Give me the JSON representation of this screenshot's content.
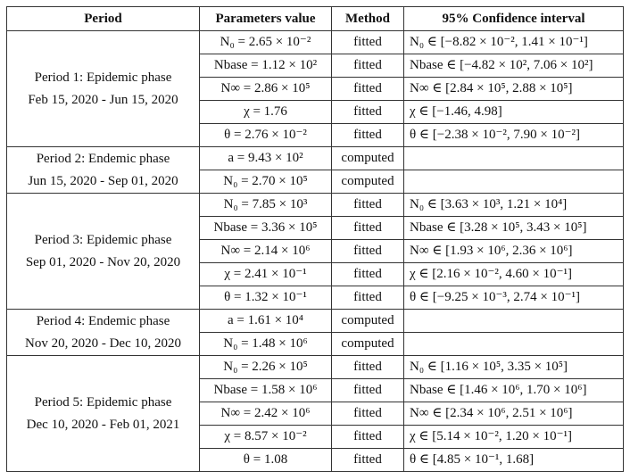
{
  "headers": [
    "Period",
    "Parameters value",
    "Method",
    "95% Confidence interval"
  ],
  "periods": [
    {
      "name": "Period 1: Epidemic phase",
      "dates": "Feb 15, 2020 - Jun 15, 2020",
      "rows": [
        {
          "param": "N₀ = 2.65 × 10⁻²",
          "method": "fitted",
          "ci": "N₀ ∈ [−8.82 × 10⁻², 1.41 × 10⁻¹]"
        },
        {
          "param": "Nbase = 1.12 × 10²",
          "method": "fitted",
          "ci": "Nbase ∈ [−4.82 × 10², 7.06 × 10²]"
        },
        {
          "param": "N∞ = 2.86 × 10⁵",
          "method": "fitted",
          "ci": "N∞ ∈ [2.84 × 10⁵, 2.88 × 10⁵]"
        },
        {
          "param": "χ = 1.76",
          "method": "fitted",
          "ci": "χ ∈ [−1.46, 4.98]"
        },
        {
          "param": "θ = 2.76 × 10⁻²",
          "method": "fitted",
          "ci": "θ ∈ [−2.38 × 10⁻², 7.90 × 10⁻²]"
        }
      ]
    },
    {
      "name": "Period 2: Endemic phase",
      "dates": "Jun 15, 2020 - Sep 01, 2020",
      "rows": [
        {
          "param": "a = 9.43 × 10²",
          "method": "computed",
          "ci": ""
        },
        {
          "param": "N₀ = 2.70 × 10⁵",
          "method": "computed",
          "ci": ""
        }
      ]
    },
    {
      "name": "Period 3: Epidemic phase",
      "dates": "Sep 01, 2020 - Nov 20, 2020",
      "rows": [
        {
          "param": "N₀ = 7.85 × 10³",
          "method": "fitted",
          "ci": "N₀ ∈ [3.63 × 10³, 1.21 × 10⁴]"
        },
        {
          "param": "Nbase = 3.36 × 10⁵",
          "method": "fitted",
          "ci": "Nbase ∈ [3.28 × 10⁵, 3.43 × 10⁵]"
        },
        {
          "param": "N∞ = 2.14 × 10⁶",
          "method": "fitted",
          "ci": "N∞ ∈ [1.93 × 10⁶, 2.36 × 10⁶]"
        },
        {
          "param": "χ = 2.41 × 10⁻¹",
          "method": "fitted",
          "ci": "χ ∈ [2.16 × 10⁻², 4.60 × 10⁻¹]"
        },
        {
          "param": "θ = 1.32 × 10⁻¹",
          "method": "fitted",
          "ci": "θ ∈ [−9.25 × 10⁻³, 2.74 × 10⁻¹]"
        }
      ]
    },
    {
      "name": "Period 4: Endemic phase",
      "dates": "Nov 20, 2020 - Dec 10, 2020",
      "rows": [
        {
          "param": "a = 1.61 × 10⁴",
          "method": "computed",
          "ci": ""
        },
        {
          "param": "N₀ = 1.48 × 10⁶",
          "method": "computed",
          "ci": ""
        }
      ]
    },
    {
      "name": "Period 5: Epidemic phase",
      "dates": "Dec 10, 2020 - Feb 01, 2021",
      "rows": [
        {
          "param": "N₀ = 2.26 × 10⁵",
          "method": "fitted",
          "ci": "N₀ ∈ [1.16 × 10⁵, 3.35 × 10⁵]"
        },
        {
          "param": "Nbase = 1.58 × 10⁶",
          "method": "fitted",
          "ci": "Nbase ∈ [1.46 × 10⁶, 1.70 × 10⁶]"
        },
        {
          "param": "N∞ = 2.42 × 10⁶",
          "method": "fitted",
          "ci": "N∞ ∈ [2.34 × 10⁶, 2.51 × 10⁶]"
        },
        {
          "param": "χ = 8.57 × 10⁻²",
          "method": "fitted",
          "ci": "χ ∈ [5.14 × 10⁻², 1.20 × 10⁻¹]"
        },
        {
          "param": "θ = 1.08",
          "method": "fitted",
          "ci": "θ ∈ [4.85 × 10⁻¹, 1.68]"
        }
      ]
    }
  ]
}
